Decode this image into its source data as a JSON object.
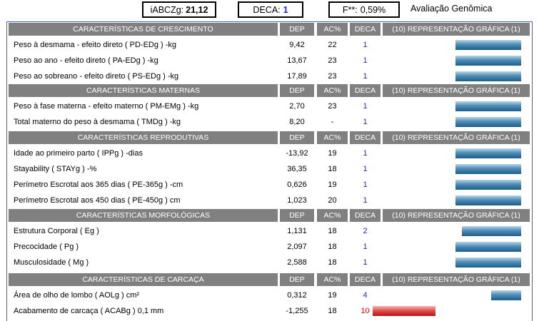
{
  "top": {
    "iabczg_label": "iABCZg:",
    "iabczg_value": "21,12",
    "deca_label": "DECA:",
    "deca_value": "1",
    "f_label": "F**:",
    "f_value": "0,59%",
    "title": "Avaliação Genômica"
  },
  "columns": {
    "dep": "DEP",
    "ac": "AC%",
    "deca": "DECA",
    "graph": "(10) REPRESENTAÇÃO GRÁFICA (1)"
  },
  "sections": [
    {
      "title": "CARACTERÍSTICAS DE CRESCIMENTO",
      "rows": [
        {
          "label": "Peso à desmama - efeito direto ( PD-EDg ) -kg",
          "dep": "9,42",
          "ac": "22",
          "deca": "1"
        },
        {
          "label": "Peso ao ano - efeito direto ( PA-EDg ) -kg",
          "dep": "13,67",
          "ac": "23",
          "deca": "1"
        },
        {
          "label": "Peso ao sobreano - efeito direto ( PS-EDg ) -kg",
          "dep": "17,89",
          "ac": "23",
          "deca": "1"
        }
      ]
    },
    {
      "title": "CARACTERÍSTICAS MATERNAS",
      "rows": [
        {
          "label": "Peso à fase materna - efeito materno ( PM-EMg ) -kg",
          "dep": "2,70",
          "ac": "23",
          "deca": "1"
        },
        {
          "label": "Total materno do peso à desmama ( TMDg ) -kg",
          "dep": "8,20",
          "ac": "-",
          "deca": "1"
        }
      ]
    },
    {
      "title": "CARACTERÍSTICAS REPRODUTIVAS",
      "rows": [
        {
          "label": "Idade ao primeiro parto ( IPPg ) -dias",
          "dep": "-13,92",
          "ac": "19",
          "deca": "1"
        },
        {
          "label": "Stayability ( STAYg ) -%",
          "dep": "36,35",
          "ac": "18",
          "deca": "1"
        },
        {
          "label": "Perímetro Escrotal aos 365 dias ( PE-365g ) -cm",
          "dep": "0,626",
          "ac": "19",
          "deca": "1"
        },
        {
          "label": "Perímetro Escrotal aos 450 dias ( PE-450g ) cm",
          "dep": "1,023",
          "ac": "20",
          "deca": "1"
        }
      ]
    },
    {
      "title": "CARACTERÍSTICAS MORFOLÓGICAS",
      "rows": [
        {
          "label": "Estrutura Corporal ( Eg )",
          "dep": "1,131",
          "ac": "18",
          "deca": "2"
        },
        {
          "label": "Precocidade ( Pg )",
          "dep": "2,097",
          "ac": "18",
          "deca": "1"
        },
        {
          "label": "Musculosidade ( Mg )",
          "dep": "2,588",
          "ac": "18",
          "deca": "1"
        }
      ]
    },
    {
      "title": "CARACTERÍSTICAS DE CARCAÇA",
      "rows": [
        {
          "label": "Área de olho de lombo ( AOLg ) cm²",
          "dep": "0,312",
          "ac": "19",
          "deca": "4"
        },
        {
          "label": "Acabamento de carcaça ( ACABg ) 0,1 mm",
          "dep": "-1,255",
          "ac": "18",
          "deca": "10"
        }
      ]
    }
  ],
  "colors": {
    "header_bg": "#808080",
    "deca_good": "#1b2fb5",
    "deca_bad": "#d01010",
    "bar_blue": "#2d6e9c",
    "bar_red": "#d03030",
    "frame": "#3f61c8"
  }
}
